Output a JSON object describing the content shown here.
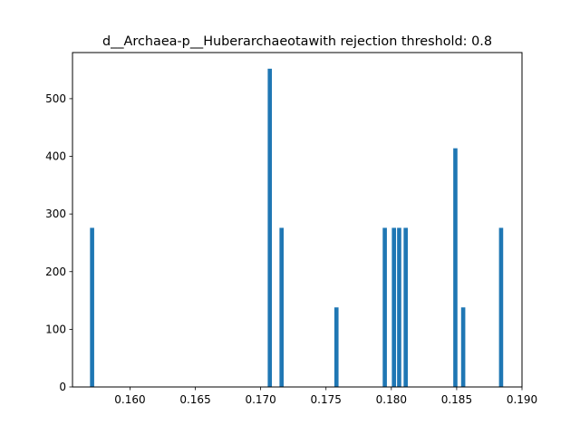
{
  "chart_data": {
    "type": "bar",
    "title": "d__Archaea-p__Huberarchaeotawith rejection threshold: 0.8",
    "xlabel": "",
    "ylabel": "",
    "xlim": [
      0.1556,
      0.19
    ],
    "ylim": [
      0,
      580
    ],
    "bar_width": 0.00032,
    "bar_color": "#1f77b4",
    "grid": false,
    "x": [
      0.1571,
      0.1707,
      0.1716,
      0.1758,
      0.1795,
      0.1802,
      0.1806,
      0.1811,
      0.1849,
      0.1855,
      0.1884
    ],
    "values": [
      276,
      552,
      276,
      138,
      276,
      276,
      276,
      276,
      414,
      138,
      276
    ],
    "xticks": [
      0.16,
      0.165,
      0.17,
      0.175,
      0.18,
      0.185,
      0.19
    ],
    "xtick_labels": [
      "0.160",
      "0.165",
      "0.170",
      "0.175",
      "0.180",
      "0.185",
      "0.190"
    ],
    "yticks": [
      0,
      100,
      200,
      300,
      400,
      500
    ],
    "ytick_labels": [
      "0",
      "100",
      "200",
      "300",
      "400",
      "500"
    ]
  }
}
